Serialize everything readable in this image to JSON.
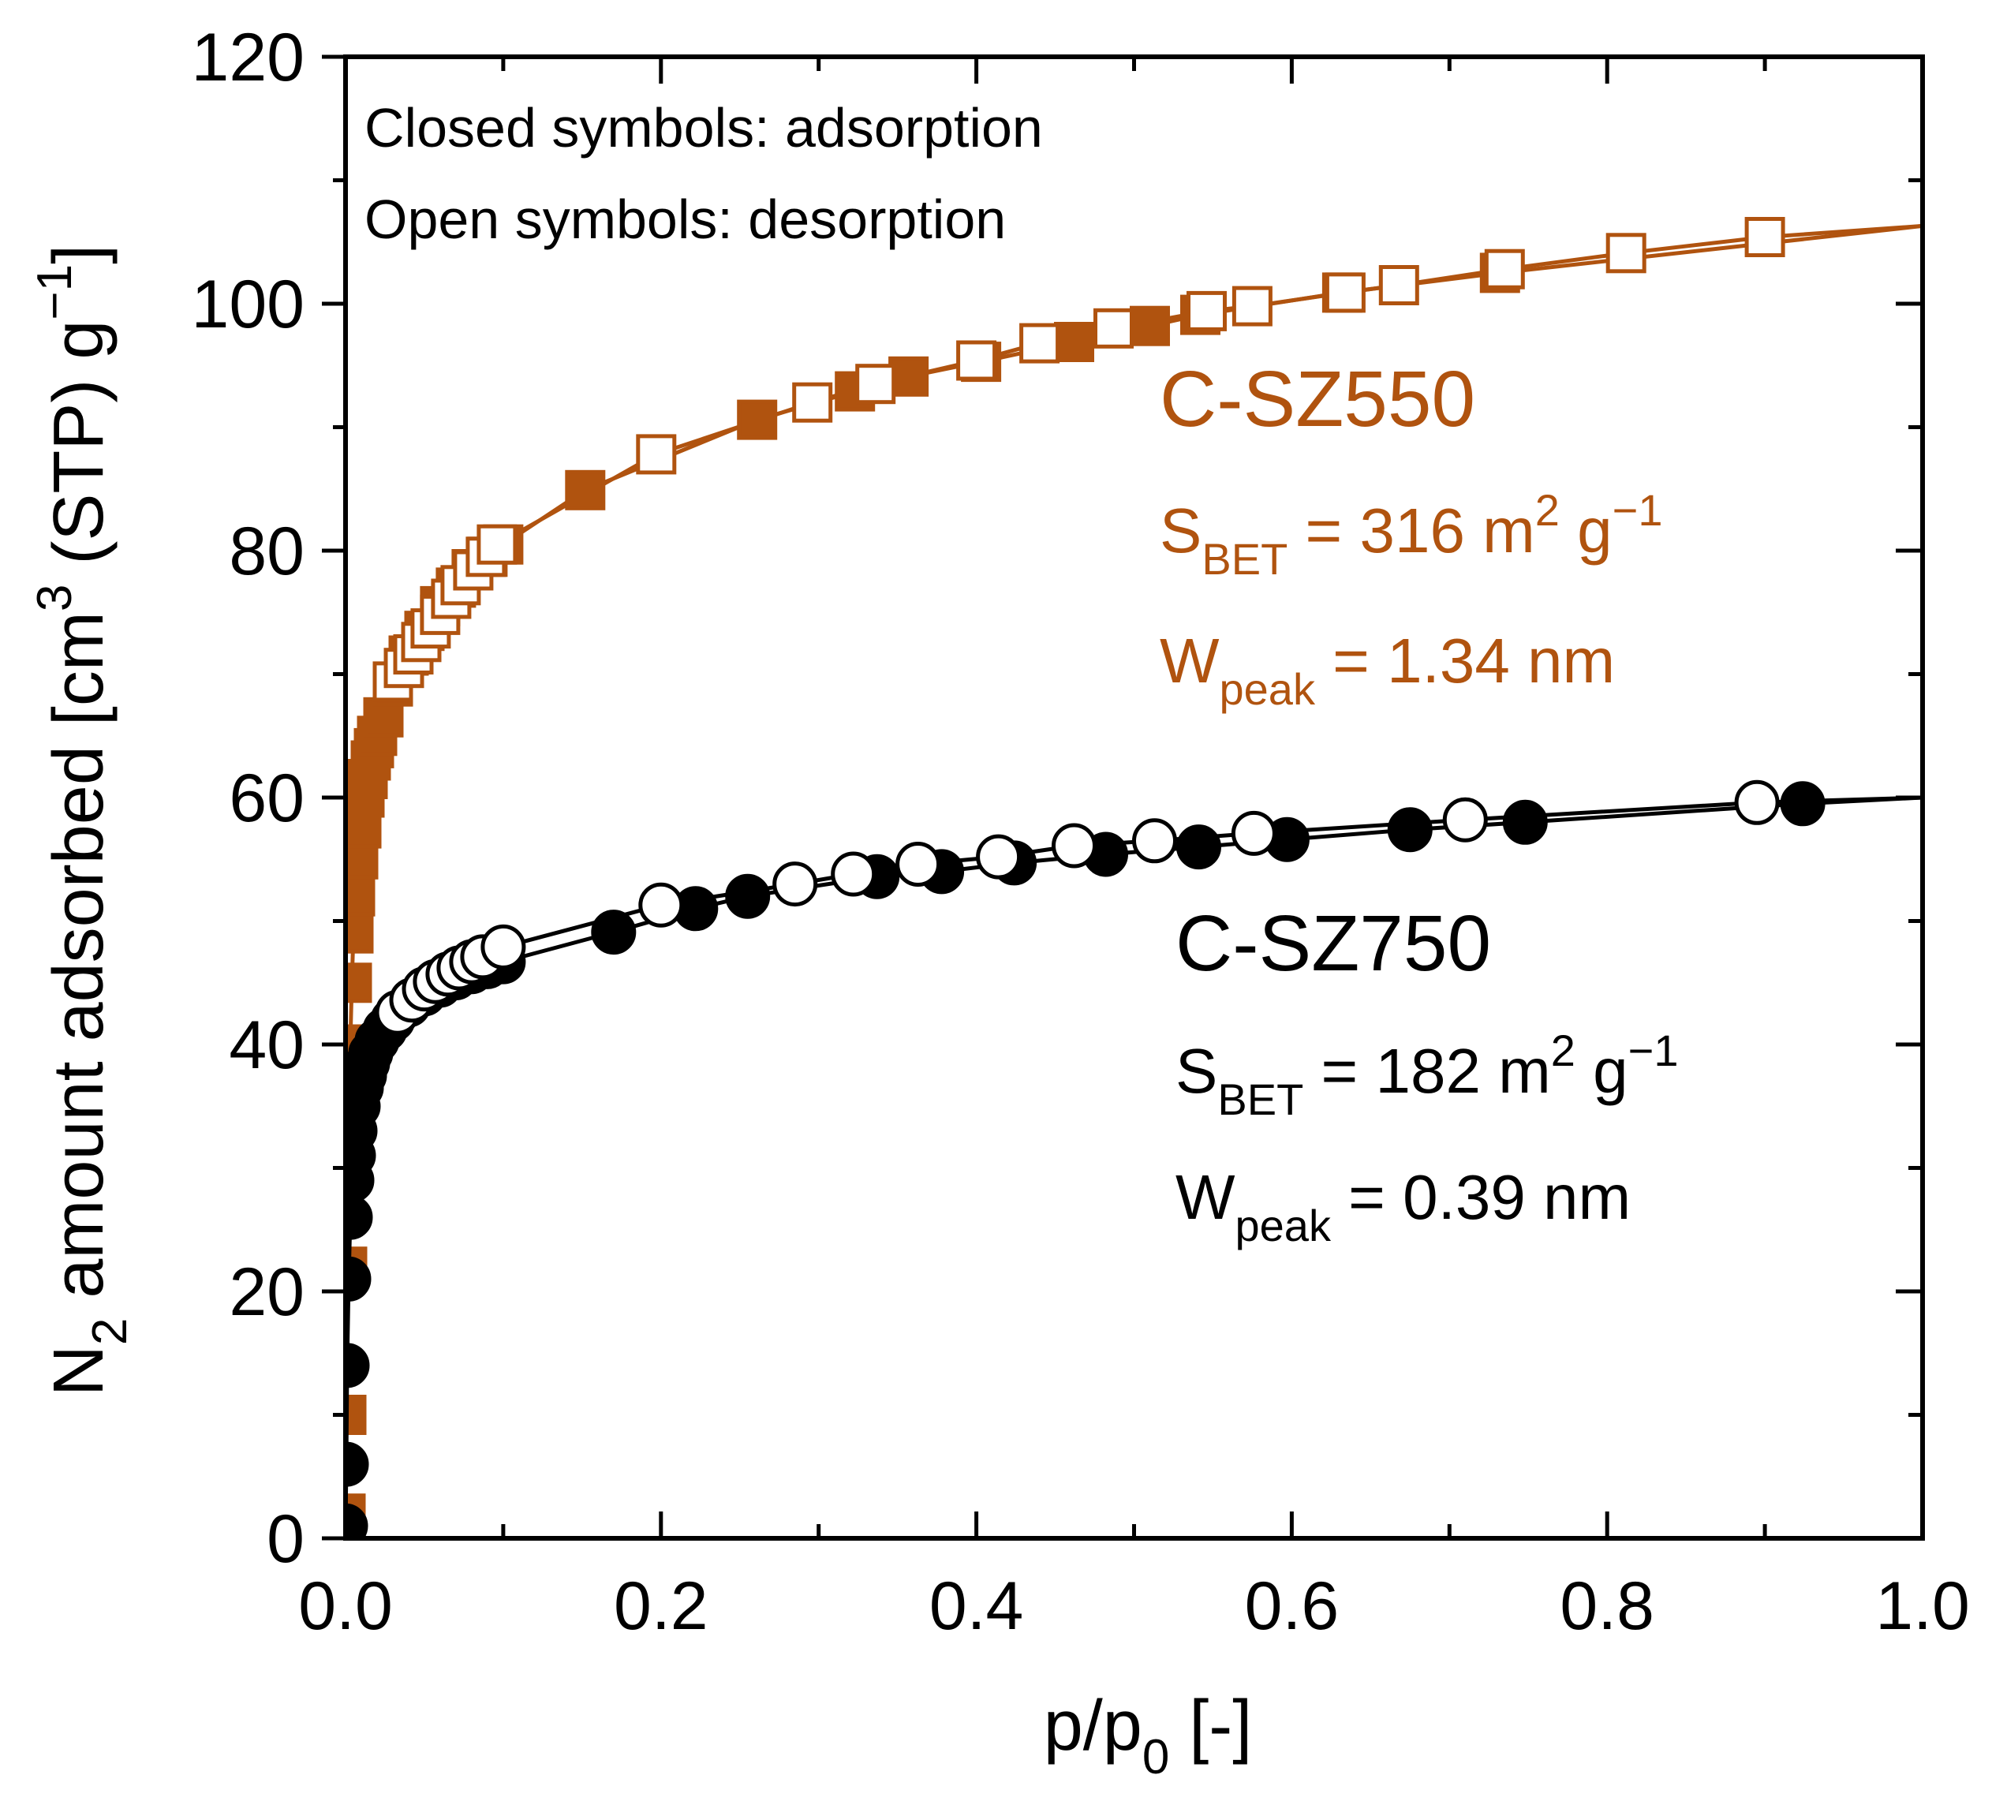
{
  "chart_data": {
    "type": "scatter",
    "xlabel_main": "p/p",
    "xlabel_sub": "0",
    "xlabel_tail": " [-]",
    "ylabel_prefix": "N",
    "ylabel_prefix_sub": "2",
    "ylabel_main": " amount adsorbed [cm",
    "ylabel_cm_sup": "3",
    "ylabel_mid": " (STP) g",
    "ylabel_g_sup": "−1",
    "ylabel_end": "]",
    "xlim": [
      0.0,
      1.0
    ],
    "ylim": [
      0,
      120
    ],
    "x_ticks": [
      0.0,
      0.2,
      0.4,
      0.6,
      0.8,
      1.0
    ],
    "x_tick_labels": [
      "0.0",
      "0.2",
      "0.4",
      "0.6",
      "0.8",
      "1.0"
    ],
    "y_ticks": [
      0,
      20,
      40,
      60,
      80,
      100,
      120
    ],
    "y_tick_labels": [
      "0",
      "20",
      "40",
      "60",
      "80",
      "100",
      "120"
    ],
    "note_line1": "Closed symbols: adsorption",
    "note_line2": "Open symbols: desorption",
    "series": [
      {
        "name": "C-SZ550",
        "color": "#b0530f",
        "marker": "square",
        "label_name": "C-SZ550",
        "sbet_S": "S",
        "sbet_sub": "BET",
        "sbet_text": " = 316 m",
        "sbet_m_sup": "2",
        "sbet_g": " g",
        "sbet_g_sup": "−1",
        "wpeak_W": "W",
        "wpeak_sub": "peak",
        "wpeak_text": " = 1.34 nm",
        "adsorption": [
          [
            0.0,
            2
          ],
          [
            0.0005,
            10
          ],
          [
            0.001,
            22
          ],
          [
            0.002,
            32
          ],
          [
            0.003,
            40
          ],
          [
            0.004,
            45
          ],
          [
            0.005,
            49
          ],
          [
            0.006,
            52
          ],
          [
            0.008,
            55
          ],
          [
            0.01,
            57.5
          ],
          [
            0.012,
            60
          ],
          [
            0.014,
            61.5
          ],
          [
            0.016,
            63
          ],
          [
            0.018,
            64
          ],
          [
            0.02,
            65
          ],
          [
            0.024,
            66.5
          ],
          [
            0.03,
            69
          ],
          [
            0.04,
            71.5
          ],
          [
            0.05,
            73.5
          ],
          [
            0.06,
            75.5
          ],
          [
            0.07,
            77
          ],
          [
            0.08,
            78.5
          ],
          [
            0.09,
            79.5
          ],
          [
            0.1,
            80.5
          ],
          [
            0.152,
            84.9
          ],
          [
            0.261,
            90.6
          ],
          [
            0.323,
            92.9
          ],
          [
            0.357,
            94.1
          ],
          [
            0.403,
            95.3
          ],
          [
            0.462,
            96.9
          ],
          [
            0.51,
            98.2
          ],
          [
            0.542,
            99.1
          ],
          [
            0.632,
            100.9
          ],
          [
            0.732,
            102.5
          ]
        ],
        "desorption": [
          [
            0.03,
            69.4
          ],
          [
            0.037,
            70.5
          ],
          [
            0.043,
            71.6
          ],
          [
            0.048,
            72.6
          ],
          [
            0.054,
            73.7
          ],
          [
            0.06,
            74.8
          ],
          [
            0.067,
            76.1
          ],
          [
            0.073,
            77.2
          ],
          [
            0.081,
            78.4
          ],
          [
            0.089,
            79.5
          ],
          [
            0.096,
            80.5
          ],
          [
            0.197,
            87.8
          ],
          [
            0.296,
            92.0
          ],
          [
            0.336,
            93.5
          ],
          [
            0.4,
            95.4
          ],
          [
            0.44,
            96.8
          ],
          [
            0.487,
            98.0
          ],
          [
            0.546,
            99.4
          ],
          [
            0.575,
            99.8
          ],
          [
            0.634,
            100.9
          ],
          [
            0.668,
            101.5
          ],
          [
            0.735,
            102.8
          ],
          [
            0.812,
            104.1
          ],
          [
            0.9,
            105.4
          ]
        ],
        "fit_end": [
          1.0,
          106.3
        ]
      },
      {
        "name": "C-SZ750",
        "color": "#000000",
        "marker": "circle",
        "label_name": "C-SZ750",
        "sbet_S": "S",
        "sbet_sub": "BET",
        "sbet_text": " = 182 m",
        "sbet_m_sup": "2",
        "sbet_g": " g",
        "sbet_g_sup": "−1",
        "wpeak_W": "W",
        "wpeak_sub": "peak",
        "wpeak_text": " = 0.39 nm",
        "adsorption": [
          [
            0.0,
            1
          ],
          [
            0.0005,
            6
          ],
          [
            0.001,
            14
          ],
          [
            0.002,
            21
          ],
          [
            0.003,
            26
          ],
          [
            0.004,
            29
          ],
          [
            0.005,
            31
          ],
          [
            0.006,
            33
          ],
          [
            0.008,
            35
          ],
          [
            0.01,
            36.5
          ],
          [
            0.012,
            37.5
          ],
          [
            0.014,
            38.5
          ],
          [
            0.016,
            39.3
          ],
          [
            0.02,
            40.3
          ],
          [
            0.025,
            41.2
          ],
          [
            0.03,
            42
          ],
          [
            0.04,
            43.2
          ],
          [
            0.05,
            44.1
          ],
          [
            0.06,
            44.8
          ],
          [
            0.07,
            45.4
          ],
          [
            0.08,
            45.9
          ],
          [
            0.09,
            46.3
          ],
          [
            0.1,
            46.7
          ],
          [
            0.17,
            49.1
          ],
          [
            0.222,
            51.0
          ],
          [
            0.255,
            52.0
          ],
          [
            0.337,
            53.6
          ],
          [
            0.378,
            54.0
          ],
          [
            0.424,
            54.7
          ],
          [
            0.482,
            55.4
          ],
          [
            0.541,
            56.0
          ],
          [
            0.597,
            56.6
          ],
          [
            0.675,
            57.4
          ],
          [
            0.748,
            58.0
          ],
          [
            0.924,
            59.5
          ]
        ],
        "desorption": [
          [
            0.033,
            42.6
          ],
          [
            0.042,
            43.6
          ],
          [
            0.05,
            44.5
          ],
          [
            0.057,
            45.1
          ],
          [
            0.065,
            45.7
          ],
          [
            0.072,
            46.2
          ],
          [
            0.08,
            46.7
          ],
          [
            0.087,
            47.1
          ],
          [
            0.1,
            47.9
          ],
          [
            0.2,
            51.3
          ],
          [
            0.285,
            53.0
          ],
          [
            0.322,
            53.8
          ],
          [
            0.363,
            54.6
          ],
          [
            0.414,
            55.2
          ],
          [
            0.462,
            56.1
          ],
          [
            0.513,
            56.5
          ],
          [
            0.576,
            57.1
          ],
          [
            0.71,
            58.2
          ],
          [
            0.895,
            59.6
          ]
        ],
        "fit_end": [
          1.0,
          60.0
        ]
      }
    ]
  }
}
